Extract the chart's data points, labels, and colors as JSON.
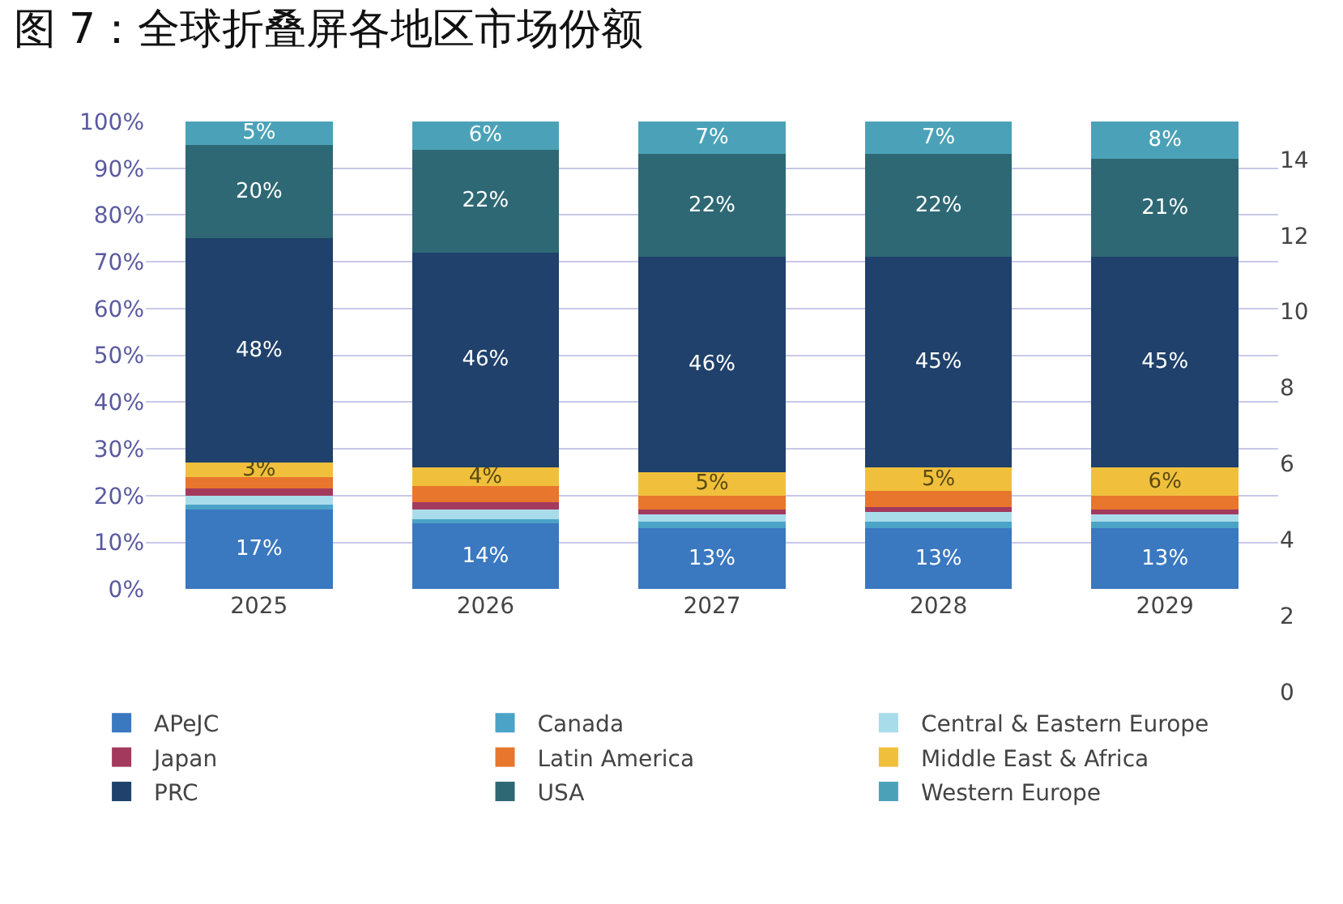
{
  "chart_data": {
    "type": "bar",
    "title": "图 7：全球折叠屏各地区市场份额",
    "stacked": true,
    "categories": [
      "2025",
      "2026",
      "2027",
      "2028",
      "2029"
    ],
    "series": [
      {
        "name": "APeJC",
        "color": "#3a78c0",
        "values": [
          17,
          14,
          13,
          13,
          13
        ],
        "value_labels": [
          "17%",
          "14%",
          "13%",
          "13%",
          "13%"
        ]
      },
      {
        "name": "Canada",
        "color": "#4ba3c8",
        "values": [
          1,
          1,
          1.5,
          1.5,
          1.5
        ]
      },
      {
        "name": "Central & Eastern Europe",
        "color": "#a9dceb",
        "values": [
          2,
          2,
          1.5,
          2,
          1.5
        ]
      },
      {
        "name": "Japan",
        "color": "#a33a5e",
        "values": [
          1.5,
          1.5,
          1,
          1,
          1
        ]
      },
      {
        "name": "Latin America",
        "color": "#e8762c",
        "values": [
          2.5,
          3.5,
          3,
          3.5,
          3
        ]
      },
      {
        "name": "Middle East & Africa",
        "color": "#f0c03c",
        "values": [
          3,
          4,
          5,
          5,
          6
        ],
        "value_labels": [
          "3%",
          "4%",
          "5%",
          "5%",
          "6%"
        ]
      },
      {
        "name": "PRC",
        "color": "#1f416b",
        "values": [
          48,
          46,
          46,
          45,
          45
        ],
        "value_labels": [
          "48%",
          "46%",
          "46%",
          "45%",
          "45%"
        ]
      },
      {
        "name": "USA",
        "color": "#2e6874",
        "values": [
          20,
          22,
          22,
          22,
          21
        ],
        "value_labels": [
          "20%",
          "22%",
          "22%",
          "22%",
          "21%"
        ]
      },
      {
        "name": "Western Europe",
        "color": "#4ba2b8",
        "values": [
          5,
          6,
          7,
          7,
          8
        ],
        "value_labels": [
          "5%",
          "6%",
          "7%",
          "7%",
          "8%"
        ]
      }
    ],
    "ylim": [
      0,
      100
    ],
    "yticks": [
      {
        "value": 0,
        "label": "0%"
      },
      {
        "value": 10,
        "label": "10%"
      },
      {
        "value": 20,
        "label": "20%"
      },
      {
        "value": 30,
        "label": "30%"
      },
      {
        "value": 40,
        "label": "40%"
      },
      {
        "value": 50,
        "label": "50%"
      },
      {
        "value": 60,
        "label": "60%"
      },
      {
        "value": 70,
        "label": "70%"
      },
      {
        "value": 80,
        "label": "80%"
      },
      {
        "value": 90,
        "label": "90%"
      },
      {
        "value": 100,
        "label": "100%"
      }
    ],
    "y2lim": [
      0,
      15
    ],
    "y2ticks": [
      0,
      2,
      4,
      6,
      8,
      10,
      12,
      14
    ],
    "grid": "y",
    "legend": "bottom"
  }
}
